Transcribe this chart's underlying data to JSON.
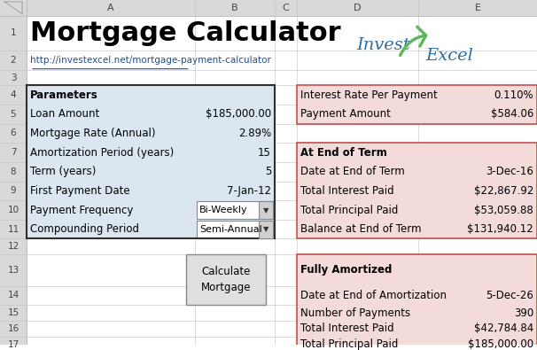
{
  "title": "Mortgage Calculator",
  "url": "http://investexcel.net/mortgage-payment-calculator",
  "bg_color": "#ffffff",
  "header_bg": "#d6dce4",
  "cell_header_color": "#d0d8e4",
  "pink_bg": "#f2dbd8",
  "row_labels": [
    "",
    "",
    "",
    "",
    "",
    "",
    "",
    "",
    "",
    "",
    "",
    "",
    "",
    "",
    "",
    "",
    ""
  ],
  "col_letters": [
    "",
    "A",
    "B",
    "C",
    "D",
    "E"
  ],
  "row_numbers": [
    "1",
    "2",
    "3",
    "4",
    "5",
    "6",
    "7",
    "8",
    "9",
    "10",
    "11",
    "12",
    "13",
    "14",
    "15",
    "16",
    "17"
  ],
  "params_left": [
    "Parameters",
    "Loan Amount",
    "Mortgage Rate (Annual)",
    "Amortization Period (years)",
    "Term (years)",
    "First Payment Date",
    "Payment Frequency",
    "Compounding Period"
  ],
  "params_right": [
    "",
    "$185,000.00",
    "2.89%",
    "15",
    "5",
    "7-Jan-12",
    "",
    ""
  ],
  "right_panel_rows4": [
    [
      "Interest Rate Per Payment",
      "0.110%"
    ],
    [
      "Payment Amount",
      "$584.06"
    ]
  ],
  "right_panel_term_header": "At End of Term",
  "right_panel_term": [
    [
      "Date at End of Term",
      "3-Dec-16"
    ],
    [
      "Total Interest Paid",
      "$22,867.92"
    ],
    [
      "Total Principal Paid",
      "$53,059.88"
    ],
    [
      "Balance at End of Term",
      "$131,940.12"
    ]
  ],
  "right_panel_full_header": "Fully Amortized",
  "right_panel_full": [
    [
      "Date at End of Amortization",
      "5-Dec-26"
    ],
    [
      "Number of Payments",
      "390"
    ],
    [
      "Total Interest Paid",
      "$42,784.84"
    ],
    [
      "Total Principal Paid",
      "$185,000.00"
    ]
  ],
  "invest_text_color": "#2e6da4",
  "arrow_color": "#5cb85c",
  "grid_color": "#c0c0c0",
  "border_color": "#5a5a5a",
  "row_header_bg": "#d9d9d9",
  "col_header_bg": "#d9d9d9"
}
